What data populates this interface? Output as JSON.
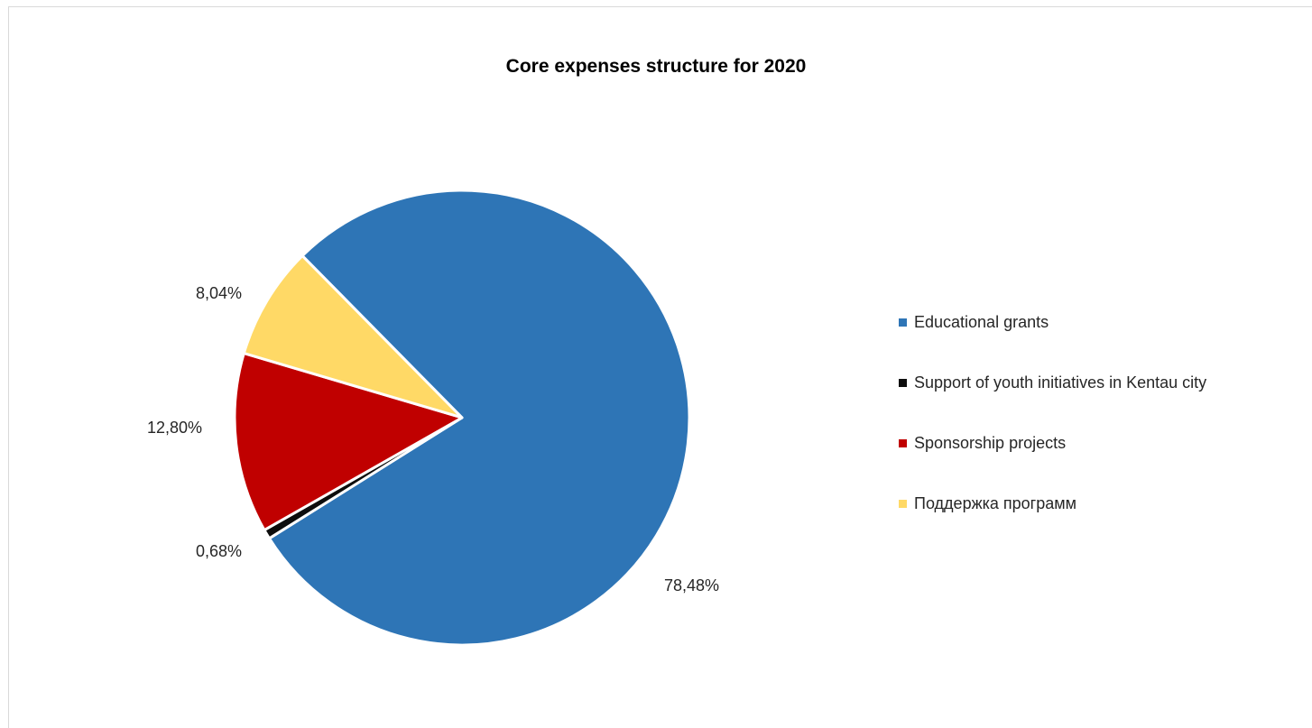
{
  "chart_data": {
    "type": "pie",
    "title": "Core expenses structure for 2020",
    "legend_position": "right",
    "slices": [
      {
        "name": "Educational grants",
        "value": 78.48,
        "label": "78,48%",
        "color": "#2e75b6"
      },
      {
        "name": "Support of youth initiatives in Kentau city",
        "value": 0.68,
        "label": "0,68%",
        "color": "#0d0d0d"
      },
      {
        "name": "Sponsorship projects",
        "value": 12.8,
        "label": "12,80%",
        "color": "#c00000"
      },
      {
        "name": "Поддержка программ",
        "value": 8.04,
        "label": "8,04%",
        "color": "#ffd966"
      }
    ]
  }
}
